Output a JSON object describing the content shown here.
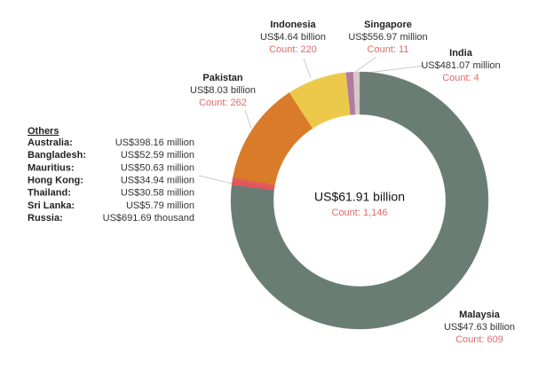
{
  "chart_data": {
    "type": "donut",
    "categories": [
      "Malaysia",
      "Pakistan",
      "Indonesia",
      "Singapore",
      "India"
    ],
    "values": [
      47.63,
      8.03,
      4.64,
      0.55697,
      0.48107
    ],
    "value_labels": [
      "US$47.63 billion",
      "US$8.03 billion",
      "US$4.64 billion",
      "US$556.97 million",
      "US$481.07 million"
    ],
    "count_labels": [
      "Count: 609",
      "Count: 262",
      "Count: 220",
      "Count: 11",
      "Count: 4"
    ],
    "colors": [
      "#6a7d74",
      "#d97b29",
      "#ecc94b",
      "#b07aa1",
      "#d6c9c9"
    ],
    "others": {
      "title": "Others",
      "categories": [
        "Australia:",
        "Bangladesh:",
        "Mauritius:",
        "Hong Kong:",
        "Thailand:",
        "Sri Lanka:",
        "Russia:"
      ],
      "values": [
        0.39816,
        0.05259,
        0.05063,
        0.03494,
        0.03058,
        0.00579,
        0.00069169
      ],
      "value_labels": [
        "US$398.16 million",
        "US$52.59 million",
        "US$50.63 million",
        "US$34.94 million",
        "US$30.58 million",
        "US$5.79 million",
        "US$691.69 thousand"
      ],
      "color": "#e15759"
    },
    "total_label": "US$61.91 billion",
    "total_count_label": "Count: 1,146"
  }
}
